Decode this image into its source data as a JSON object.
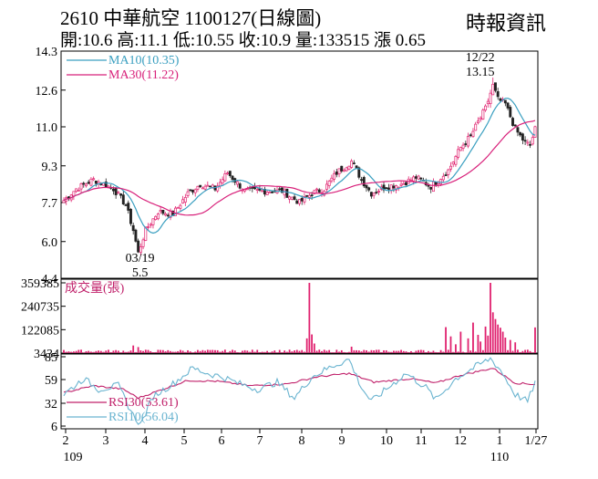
{
  "header": {
    "title": "2610  中華航空 1100127(日線圖)",
    "ohlc": "開:10.6 高:11.1 低:10.55 收:10.9 量:133515 漲 0.65",
    "source": "時報資訊"
  },
  "colors": {
    "up": "#e0206e",
    "down": "#222222",
    "ma10": "#3a9fc0",
    "ma30": "#d8207a",
    "rsi30": "#c0206a",
    "rsi10": "#6ab4d0",
    "volume": "#e0206e"
  },
  "chart_data": [
    {
      "type": "candlestick",
      "price_ticks": [
        "14.3",
        "12.6",
        "11.0",
        "9.3",
        "7.7",
        "6.0",
        "4.4"
      ],
      "ylim": [
        4.4,
        14.3
      ],
      "legend": [
        {
          "key": "ma10",
          "label": "MA10(10.35)"
        },
        {
          "key": "ma30",
          "label": "MA30(11.22)"
        }
      ],
      "annotations": [
        {
          "date": "12/22",
          "value": "13.15"
        },
        {
          "date": "03/19",
          "value": "5.5"
        }
      ],
      "anchors": [
        {
          "t": 0,
          "c": 7.8
        },
        {
          "t": 5,
          "c": 8.3
        },
        {
          "t": 12,
          "c": 8.7
        },
        {
          "t": 20,
          "c": 8.3
        },
        {
          "t": 25,
          "c": 7.6
        },
        {
          "t": 28,
          "c": 6.5
        },
        {
          "t": 30,
          "c": 5.5
        },
        {
          "t": 33,
          "c": 6.5
        },
        {
          "t": 38,
          "c": 7.3
        },
        {
          "t": 44,
          "c": 7.2
        },
        {
          "t": 50,
          "c": 8.1
        },
        {
          "t": 55,
          "c": 8.5
        },
        {
          "t": 61,
          "c": 8.3
        },
        {
          "t": 66,
          "c": 9.0
        },
        {
          "t": 73,
          "c": 8.2
        },
        {
          "t": 80,
          "c": 8.2
        },
        {
          "t": 88,
          "c": 8.2
        },
        {
          "t": 95,
          "c": 7.7
        },
        {
          "t": 100,
          "c": 8.1
        },
        {
          "t": 105,
          "c": 8.3
        },
        {
          "t": 110,
          "c": 9.0
        },
        {
          "t": 116,
          "c": 9.5
        },
        {
          "t": 120,
          "c": 8.7
        },
        {
          "t": 124,
          "c": 8.1
        },
        {
          "t": 130,
          "c": 8.4
        },
        {
          "t": 136,
          "c": 8.5
        },
        {
          "t": 142,
          "c": 8.8
        },
        {
          "t": 148,
          "c": 8.4
        },
        {
          "t": 155,
          "c": 9.1
        },
        {
          "t": 160,
          "c": 10.1
        },
        {
          "t": 164,
          "c": 10.6
        },
        {
          "t": 170,
          "c": 11.8
        },
        {
          "t": 173,
          "c": 12.8
        },
        {
          "t": 175,
          "c": 12.2
        },
        {
          "t": 178,
          "c": 12.0
        },
        {
          "t": 182,
          "c": 10.9
        },
        {
          "t": 186,
          "c": 10.3
        },
        {
          "t": 188,
          "c": 10.2
        },
        {
          "t": 190,
          "c": 10.9
        }
      ],
      "high_low_anchors": [
        {
          "t": 30,
          "low": 5.5
        },
        {
          "t": 173,
          "high": 13.15
        }
      ]
    },
    {
      "type": "bar",
      "name": "成交量(張)",
      "yticks": [
        "359385",
        "240735",
        "122085",
        "3434"
      ],
      "ylim": [
        3434,
        359385
      ],
      "base": 7000,
      "spikes": [
        {
          "t": 99,
          "v": 359385
        },
        {
          "t": 98,
          "v": 78000
        },
        {
          "t": 100,
          "v": 98000
        },
        {
          "t": 101,
          "v": 52000
        },
        {
          "t": 28,
          "v": 42000
        },
        {
          "t": 30,
          "v": 34000
        },
        {
          "t": 116,
          "v": 36000
        },
        {
          "t": 154,
          "v": 135000
        },
        {
          "t": 156,
          "v": 88000
        },
        {
          "t": 158,
          "v": 48000
        },
        {
          "t": 160,
          "v": 112000
        },
        {
          "t": 163,
          "v": 78000
        },
        {
          "t": 165,
          "v": 158000
        },
        {
          "t": 167,
          "v": 96000
        },
        {
          "t": 168,
          "v": 62000
        },
        {
          "t": 170,
          "v": 138000
        },
        {
          "t": 171,
          "v": 92000
        },
        {
          "t": 172,
          "v": 359385
        },
        {
          "t": 173,
          "v": 210000
        },
        {
          "t": 174,
          "v": 176000
        },
        {
          "t": 175,
          "v": 148000
        },
        {
          "t": 176,
          "v": 132000
        },
        {
          "t": 177,
          "v": 112000
        },
        {
          "t": 178,
          "v": 82000
        },
        {
          "t": 180,
          "v": 70000
        },
        {
          "t": 182,
          "v": 58000
        },
        {
          "t": 190,
          "v": 133515
        }
      ]
    },
    {
      "type": "line",
      "yticks": [
        "85",
        "59",
        "32",
        "6"
      ],
      "ylim": [
        6,
        85
      ],
      "series": [
        {
          "name": "RSI30(53.61)",
          "key": "rsi30",
          "anchors": [
            {
              "t": 0,
              "v": 44
            },
            {
              "t": 12,
              "v": 52
            },
            {
              "t": 24,
              "v": 48
            },
            {
              "t": 30,
              "v": 38
            },
            {
              "t": 38,
              "v": 46
            },
            {
              "t": 50,
              "v": 58
            },
            {
              "t": 62,
              "v": 57
            },
            {
              "t": 75,
              "v": 52
            },
            {
              "t": 90,
              "v": 54
            },
            {
              "t": 102,
              "v": 62
            },
            {
              "t": 115,
              "v": 66
            },
            {
              "t": 125,
              "v": 56
            },
            {
              "t": 140,
              "v": 60
            },
            {
              "t": 150,
              "v": 55
            },
            {
              "t": 160,
              "v": 64
            },
            {
              "t": 173,
              "v": 72
            },
            {
              "t": 182,
              "v": 55
            },
            {
              "t": 190,
              "v": 53.61
            }
          ]
        },
        {
          "name": "RSI10(56.04)",
          "key": "rsi10",
          "anchors": [
            {
              "t": 0,
              "v": 42
            },
            {
              "t": 8,
              "v": 60
            },
            {
              "t": 14,
              "v": 48
            },
            {
              "t": 22,
              "v": 52
            },
            {
              "t": 28,
              "v": 18
            },
            {
              "t": 31,
              "v": 8
            },
            {
              "t": 36,
              "v": 40
            },
            {
              "t": 44,
              "v": 54
            },
            {
              "t": 52,
              "v": 72
            },
            {
              "t": 58,
              "v": 66
            },
            {
              "t": 64,
              "v": 62
            },
            {
              "t": 70,
              "v": 55
            },
            {
              "t": 78,
              "v": 48
            },
            {
              "t": 86,
              "v": 56
            },
            {
              "t": 93,
              "v": 38
            },
            {
              "t": 100,
              "v": 62
            },
            {
              "t": 108,
              "v": 74
            },
            {
              "t": 115,
              "v": 82
            },
            {
              "t": 120,
              "v": 50
            },
            {
              "t": 124,
              "v": 34
            },
            {
              "t": 130,
              "v": 48
            },
            {
              "t": 138,
              "v": 66
            },
            {
              "t": 146,
              "v": 50
            },
            {
              "t": 150,
              "v": 36
            },
            {
              "t": 158,
              "v": 60
            },
            {
              "t": 165,
              "v": 72
            },
            {
              "t": 172,
              "v": 83
            },
            {
              "t": 176,
              "v": 70
            },
            {
              "t": 182,
              "v": 42
            },
            {
              "t": 187,
              "v": 34
            },
            {
              "t": 190,
              "v": 56.04
            }
          ]
        }
      ]
    }
  ],
  "x_axis": {
    "labels": [
      {
        "label": "2",
        "t": 2
      },
      {
        "label": "3",
        "t": 21
      },
      {
        "label": "4",
        "t": 40
      },
      {
        "label": "5",
        "t": 59
      },
      {
        "label": "6",
        "t": 80
      },
      {
        "label": "7",
        "t": 101
      },
      {
        "label": "8",
        "t": 125
      },
      {
        "label": "9",
        "t": 144
      },
      {
        "label": "10",
        "t": 166
      },
      {
        "label": "11",
        "t": 186
      },
      {
        "label": "12",
        "t": 205
      },
      {
        "label": "1",
        "t": 230
      },
      {
        "label": "1/27",
        "t": 245
      }
    ],
    "sub_labels": [
      {
        "label": "109",
        "t": 2
      },
      {
        "label": "110",
        "t": 230
      }
    ]
  }
}
